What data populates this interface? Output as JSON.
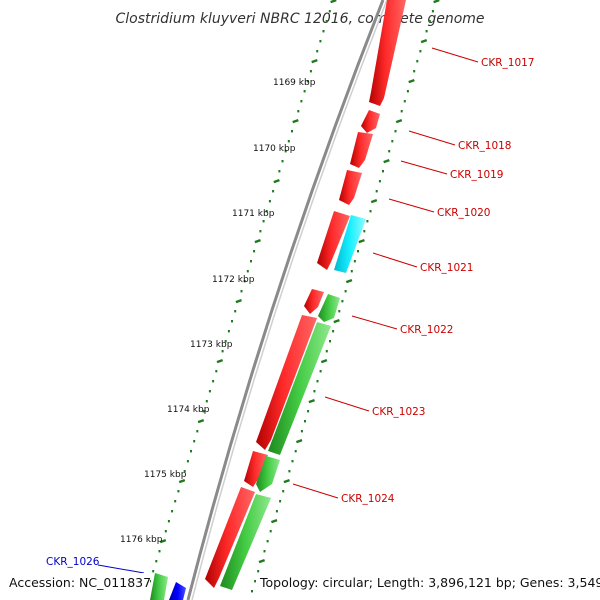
{
  "title": "Clostridium kluyveri NBRC 12016, complete genome",
  "accession_text": "Accession: NC_011837",
  "topology_text": "Topology: circular; Length: 3,896,121 bp; Genes: 3,549",
  "colors": {
    "backbone": "#8a8a8a",
    "tick": "#1f7a1f",
    "cds_forward": "#ff0000",
    "cds_other": "#00e5ff",
    "rrna": "#44cc44",
    "trna": "#0000ff",
    "label_red": "#cc0000",
    "label_blue": "#0000cc"
  },
  "kbp_ticks": [
    "1169 kbp",
    "1170 kbp",
    "1171 kbp",
    "1172 kbp",
    "1173 kbp",
    "1174 kbp",
    "1175 kbp",
    "1176 kbp"
  ],
  "gene_labels": [
    {
      "name": "CKR_1017",
      "color": "label_red"
    },
    {
      "name": "CKR_1018",
      "color": "label_red"
    },
    {
      "name": "CKR_1019",
      "color": "label_red"
    },
    {
      "name": "CKR_1020",
      "color": "label_red"
    },
    {
      "name": "CKR_1021",
      "color": "label_red"
    },
    {
      "name": "CKR_1022",
      "color": "label_red"
    },
    {
      "name": "CKR_1023",
      "color": "label_red"
    },
    {
      "name": "CKR_1024",
      "color": "label_red"
    },
    {
      "name": "CKR_1026",
      "color": "label_blue"
    }
  ]
}
